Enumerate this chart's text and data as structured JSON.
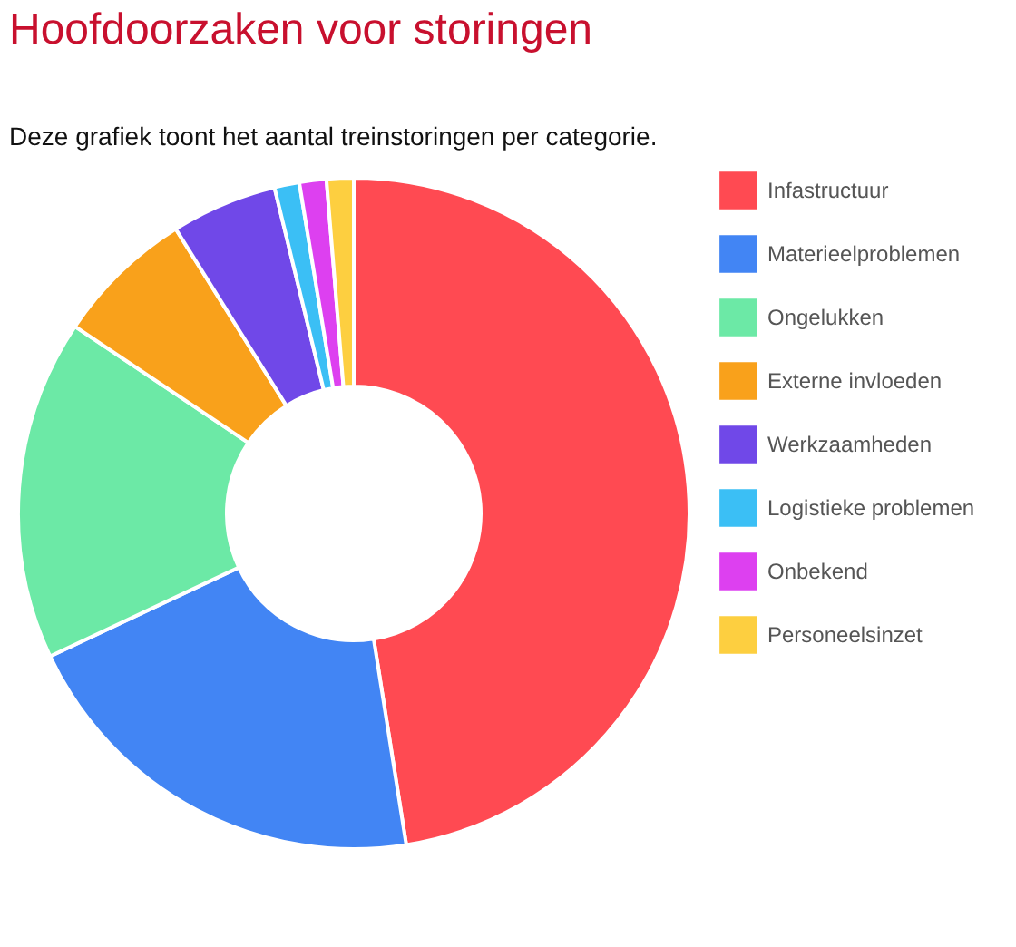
{
  "chart_data": {
    "type": "donut",
    "title": "Hoofdoorzaken voor storingen",
    "subtitle": "Deze grafiek toont het aantal treinstoringen per categorie.",
    "categories": [
      "Infastructuur",
      "Materieelproblemen",
      "Ongelukken",
      "Externe invloeden",
      "Werkzaamheden",
      "Logistieke problemen",
      "Onbekend",
      "Personeelsinzet"
    ],
    "values": [
      47.5,
      20.5,
      16.4,
      6.7,
      5.1,
      1.2,
      1.3,
      1.3
    ],
    "colors": [
      "#ff4a52",
      "#4285f4",
      "#6ce9a6",
      "#f9a11b",
      "#7048e8",
      "#3bbff5",
      "#dd40f0",
      "#fdcf40"
    ],
    "legend": "top right"
  }
}
